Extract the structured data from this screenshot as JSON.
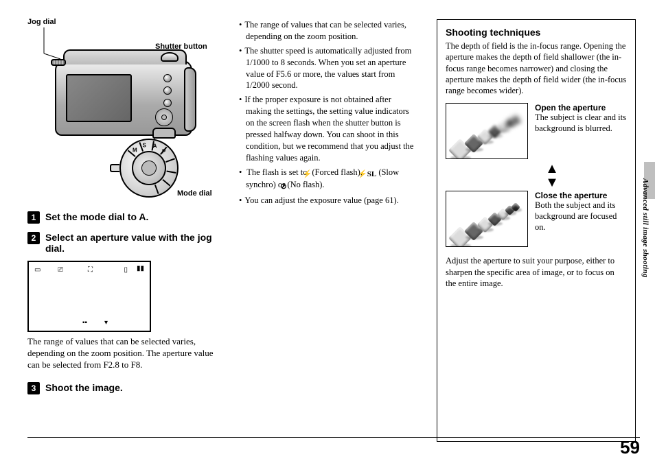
{
  "labels": {
    "jog_dial": "Jog dial",
    "shutter_button": "Shutter button",
    "mode_dial": "Mode dial"
  },
  "steps": {
    "s1": "Set the mode dial to A.",
    "s2": "Select an aperture value with the jog dial.",
    "s3": "Shoot the image."
  },
  "step2_body": "The range of values that can be selected varies, depending on the zoom position. The aperture value can be selected from F2.8 to F8.",
  "bullets": {
    "b1": "The range of values that can be selected varies, depending on the zoom position.",
    "b2": "The shutter speed is automatically adjusted from 1/1000 to 8 seconds. When you set an aperture value of F5.6 or more, the values start from 1/2000 second.",
    "b3": "If the proper exposure is not obtained after making the settings, the setting value indicators on the screen flash when the shutter button is pressed halfway down. You can shoot in this condition, but we recommend that you adjust the flashing values again.",
    "b4_pre": "The flash is set to ",
    "b4_forced": "(Forced flash), ",
    "b4_sl": " (Slow synchro) or ",
    "b4_noflash": "(No flash).",
    "b5": "You can adjust the exposure value (page 61)."
  },
  "techniques": {
    "heading": "Shooting techniques",
    "intro": "The depth of field is the in-focus range. Opening the aperture makes the depth of field shallower (the in-focus range becomes narrower) and closing the aperture makes the depth of field wider (the in-focus range becomes wider).",
    "open_title": "Open the aperture",
    "open_body": "The subject is clear and its background is blurred.",
    "close_title": "Close the aperture",
    "close_body": "Both the subject and its background are focused on.",
    "outro": "Adjust the aperture to suit your purpose, either to sharpen the specific area of image, or to focus on the entire image."
  },
  "side_text": "Advanced still image shooting",
  "page_number": "59",
  "mode_dial_marks": [
    "M",
    "S",
    "A",
    "P"
  ],
  "flash_icons": {
    "forced": "⚡",
    "slow": "⚡SL",
    "none": "⊘"
  },
  "colors": {
    "dice_light": "#dcdcdc",
    "dice_dark": "#2a2a2a",
    "shadow": "rgba(0,0,0,0.25)"
  }
}
